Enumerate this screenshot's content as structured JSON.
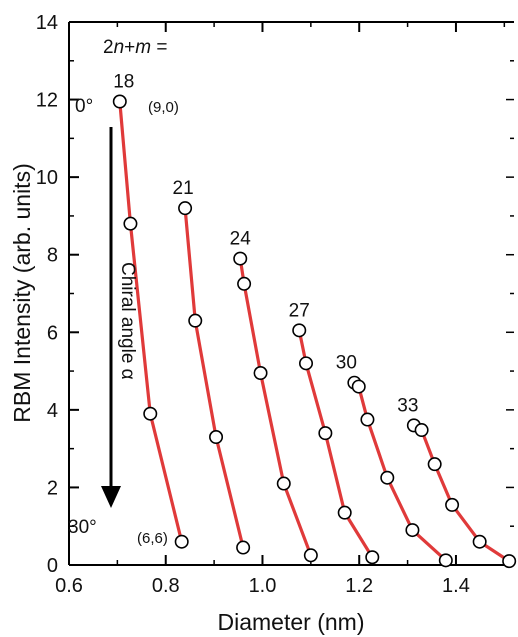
{
  "chart_data": {
    "type": "line",
    "title": "",
    "xlabel": "Diameter (nm)",
    "ylabel": "RBM Intensity (arb. units)",
    "xlim": [
      0.6,
      1.52
    ],
    "ylim": [
      0,
      14
    ],
    "xticks": [
      "0.6",
      "0.8",
      "1.0",
      "1.2",
      "1.4"
    ],
    "yticks": [
      "0",
      "2",
      "4",
      "6",
      "8",
      "10",
      "12",
      "14"
    ],
    "grid": false,
    "line_color": "#e03a3a",
    "marker_style": "open-circle",
    "series_header": "2n+m =",
    "series": [
      {
        "name": "18",
        "x": [
          0.705,
          0.727,
          0.768,
          0.833
        ],
        "y": [
          11.95,
          8.8,
          3.9,
          0.6
        ]
      },
      {
        "name": "21",
        "x": [
          0.84,
          0.861,
          0.904,
          0.96
        ],
        "y": [
          9.2,
          6.3,
          3.3,
          0.45
        ]
      },
      {
        "name": "24",
        "x": [
          0.954,
          0.962,
          0.996,
          1.044,
          1.1
        ],
        "y": [
          7.9,
          7.25,
          4.95,
          2.1,
          0.25
        ]
      },
      {
        "name": "27",
        "x": [
          1.076,
          1.09,
          1.13,
          1.17,
          1.227
        ],
        "y": [
          6.05,
          5.2,
          3.4,
          1.35,
          0.2
        ]
      },
      {
        "name": "30",
        "x": [
          1.19,
          1.199,
          1.217,
          1.258,
          1.31,
          1.379
        ],
        "y": [
          4.7,
          4.6,
          3.75,
          2.25,
          0.9,
          0.12
        ]
      },
      {
        "name": "33",
        "x": [
          1.313,
          1.329,
          1.356,
          1.392,
          1.449,
          1.51
        ],
        "y": [
          3.6,
          3.48,
          2.6,
          1.55,
          0.6,
          0.1
        ]
      }
    ],
    "annotations": {
      "angle_top": "0°",
      "angle_top_index": "(9,0)",
      "angle_bottom": "30°",
      "angle_bottom_index": "(6,6)",
      "arrow_label": "Chiral angle α"
    }
  }
}
